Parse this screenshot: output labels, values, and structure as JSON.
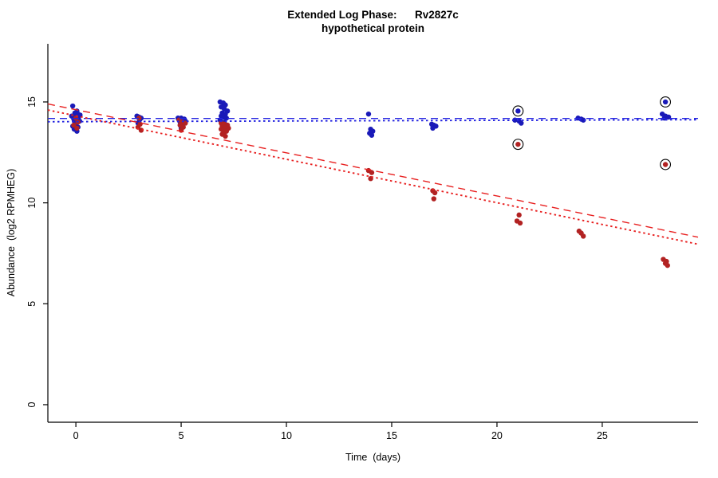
{
  "chart_data": {
    "type": "scatter",
    "title": "Extended Log Phase:      Rv2827c",
    "subtitle": "hypothetical protein",
    "xlabel": "Time  (days)",
    "ylabel": "Abundance  (log2 RPMHEG)",
    "xlim": [
      -1.33,
      29.55
    ],
    "ylim": [
      -0.87,
      17.88
    ],
    "x_ticks": [
      0,
      5,
      10,
      15,
      20,
      25
    ],
    "y_ticks": [
      0,
      5,
      10,
      15
    ],
    "grid": false,
    "legend": null,
    "colors": {
      "blue_point": "#1a1ab8",
      "red_point": "#b22222",
      "blue_line": "#2424e0",
      "red_line": "#e82020",
      "axis": "#000000",
      "highlight": "#000000"
    },
    "series": [
      {
        "name": "blue-series",
        "color_key": "blue_point",
        "points": [
          [
            -0.15,
            14.8
          ],
          [
            0.05,
            14.55
          ],
          [
            -0.05,
            14.45
          ],
          [
            0.1,
            14.4
          ],
          [
            0.2,
            14.35
          ],
          [
            -0.2,
            14.3
          ],
          [
            0,
            14.25
          ],
          [
            0.12,
            14.2
          ],
          [
            -0.1,
            14.15
          ],
          [
            0.05,
            14.1
          ],
          [
            0.18,
            14.05
          ],
          [
            -0.05,
            14
          ],
          [
            0,
            13.9
          ],
          [
            -0.15,
            13.8
          ],
          [
            0.1,
            13.75
          ],
          [
            -0.08,
            13.65
          ],
          [
            0.05,
            13.55
          ],
          [
            2.9,
            14.3
          ],
          [
            3,
            14.25
          ],
          [
            3.1,
            14.2
          ],
          [
            3.02,
            14.1
          ],
          [
            2.95,
            13.95
          ],
          [
            4.85,
            14.2
          ],
          [
            5,
            14.2
          ],
          [
            5.15,
            14.15
          ],
          [
            4.9,
            14.1
          ],
          [
            5.05,
            14.1
          ],
          [
            5.2,
            14.05
          ],
          [
            4.95,
            14
          ],
          [
            5.1,
            13.95
          ],
          [
            5,
            13.7
          ],
          [
            6.85,
            15
          ],
          [
            7,
            14.95
          ],
          [
            7.1,
            14.85
          ],
          [
            6.9,
            14.75
          ],
          [
            7.05,
            14.65
          ],
          [
            7.2,
            14.55
          ],
          [
            6.95,
            14.45
          ],
          [
            7.1,
            14.4
          ],
          [
            6.9,
            14.3
          ],
          [
            7,
            14.25
          ],
          [
            7.15,
            14.2
          ],
          [
            6.85,
            14.1
          ],
          [
            7.05,
            14
          ],
          [
            6.95,
            13.85
          ],
          [
            13.9,
            14.4
          ],
          [
            14,
            13.65
          ],
          [
            14.1,
            13.55
          ],
          [
            13.95,
            13.45
          ],
          [
            14.05,
            13.35
          ],
          [
            16.9,
            13.9
          ],
          [
            17,
            13.85
          ],
          [
            17.1,
            13.8
          ],
          [
            16.95,
            13.7
          ],
          [
            20.85,
            14.1
          ],
          [
            21,
            14.55
          ],
          [
            21.05,
            14.05
          ],
          [
            21.15,
            13.95
          ],
          [
            23.85,
            14.2
          ],
          [
            24,
            14.15
          ],
          [
            24.1,
            14.1
          ],
          [
            27.85,
            14.4
          ],
          [
            28,
            15
          ],
          [
            28,
            14.3
          ],
          [
            28.15,
            14.25
          ],
          [
            27.95,
            14.2
          ]
        ]
      },
      {
        "name": "red-series",
        "color_key": "red_point",
        "points": [
          [
            0,
            14.2
          ],
          [
            0.1,
            14
          ],
          [
            -0.1,
            13.85
          ],
          [
            0.05,
            13.7
          ],
          [
            3,
            14.2
          ],
          [
            3.05,
            13.9
          ],
          [
            2.95,
            13.75
          ],
          [
            3.1,
            13.6
          ],
          [
            4.9,
            14.1
          ],
          [
            5.05,
            14
          ],
          [
            5.2,
            13.95
          ],
          [
            4.95,
            13.85
          ],
          [
            5.1,
            13.75
          ],
          [
            5,
            13.6
          ],
          [
            6.9,
            13.95
          ],
          [
            7.05,
            13.9
          ],
          [
            7.2,
            13.85
          ],
          [
            6.95,
            13.8
          ],
          [
            7.1,
            13.75
          ],
          [
            7.25,
            13.7
          ],
          [
            6.9,
            13.65
          ],
          [
            7,
            13.6
          ],
          [
            7.15,
            13.55
          ],
          [
            7.05,
            13.5
          ],
          [
            6.95,
            13.4
          ],
          [
            7.1,
            13.3
          ],
          [
            13.9,
            11.6
          ],
          [
            14.05,
            11.5
          ],
          [
            14,
            11.2
          ],
          [
            16.95,
            10.6
          ],
          [
            17.05,
            10.5
          ],
          [
            17,
            10.2
          ],
          [
            21,
            12.9
          ],
          [
            21.05,
            9.4
          ],
          [
            20.95,
            9.1
          ],
          [
            21.1,
            9
          ],
          [
            23.9,
            8.6
          ],
          [
            24,
            8.5
          ],
          [
            24.1,
            8.35
          ],
          [
            28,
            11.9
          ],
          [
            27.9,
            7.2
          ],
          [
            28.05,
            7.1
          ],
          [
            28,
            7
          ],
          [
            28.1,
            6.9
          ]
        ]
      }
    ],
    "highlighted_points": [
      {
        "series": "blue-series",
        "x": 21,
        "y": 14.55
      },
      {
        "series": "blue-series",
        "x": 28,
        "y": 15
      },
      {
        "series": "red-series",
        "x": 21,
        "y": 12.9
      },
      {
        "series": "red-series",
        "x": 28,
        "y": 11.9
      }
    ],
    "trend_lines": [
      {
        "name": "blue-dashed",
        "color_key": "blue_line",
        "style": "dashed",
        "x1": -1.33,
        "y1": 14.18,
        "x2": 29.55,
        "y2": 14.18
      },
      {
        "name": "blue-dotted",
        "color_key": "blue_line",
        "style": "dotted",
        "x1": -1.33,
        "y1": 14.02,
        "x2": 29.55,
        "y2": 14.12
      },
      {
        "name": "red-dashed",
        "color_key": "red_line",
        "style": "dashed",
        "x1": -1.33,
        "y1": 14.9,
        "x2": 29.55,
        "y2": 8.3
      },
      {
        "name": "red-dotted",
        "color_key": "red_line",
        "style": "dotted",
        "x1": -1.33,
        "y1": 14.6,
        "x2": 29.55,
        "y2": 7.95
      }
    ]
  }
}
